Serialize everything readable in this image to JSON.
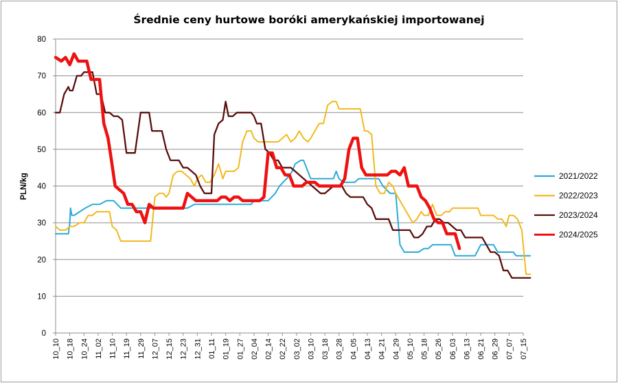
{
  "chart_data": {
    "type": "line",
    "title": "Średnie ceny hurtowe boróki amerykańskiej importowanej",
    "xlabel": "",
    "ylabel": "PLN/kg",
    "ylim": [
      0,
      80
    ],
    "yticks": [
      0,
      10,
      20,
      30,
      40,
      50,
      60,
      70,
      80
    ],
    "grid": true,
    "legend_position": "right",
    "categories": [
      "10_10",
      "10_18",
      "10_24",
      "11_02",
      "11_10",
      "11_19",
      "11_29",
      "12_07",
      "12_15",
      "12_23",
      "12_31",
      "01_11",
      "01_19",
      "01_27",
      "02_04",
      "02_14",
      "02_22",
      "03_02",
      "03_10",
      "03_18",
      "03_28",
      "04_05",
      "04_13",
      "04_21",
      "04_29",
      "05_10",
      "05_18",
      "05_26",
      "06_03",
      "06_13",
      "06_21",
      "06_29",
      "07_07",
      "07_15"
    ],
    "series": [
      {
        "name": "2021/2022",
        "color": "#2aaad6",
        "width": 2,
        "x": [
          0,
          0.9,
          1.0,
          1.05,
          1.15,
          1.3,
          1.7,
          2.1,
          2.6,
          3.1,
          3.6,
          3.8,
          4.1,
          4.6,
          5.0,
          5.4,
          5.8,
          6.3,
          6.8,
          7.3,
          7.8,
          8.3,
          8.8,
          9.3,
          9.8,
          10.0,
          10.3,
          10.8,
          11.3,
          11.8,
          12.3,
          12.8,
          13.3,
          13.8,
          14.0,
          14.3,
          14.8,
          15.0,
          15.5,
          15.8,
          16.3,
          16.7,
          16.9,
          17.3,
          17.5,
          17.8,
          18.0,
          18.3,
          18.7,
          19.0,
          19.3,
          19.6,
          19.8,
          20.0,
          20.3,
          20.5,
          20.8,
          21.1,
          21.4,
          21.8,
          22.0,
          22.4,
          22.8,
          23.1,
          23.6,
          24.0,
          24.3,
          24.6,
          24.9,
          25.2,
          25.6,
          26.0,
          26.3,
          26.6,
          26.9,
          27.3,
          27.6,
          27.9,
          28.2,
          28.5,
          28.8,
          29.2,
          29.6,
          30.0,
          30.3,
          30.6,
          30.9,
          31.2,
          31.6,
          32.0,
          32.3,
          32.5,
          32.8,
          33.2,
          33.5
        ],
        "y": [
          27,
          27,
          30,
          34,
          32,
          32,
          33,
          34,
          35,
          35,
          36,
          36,
          36,
          34,
          34,
          34,
          34,
          34,
          34,
          34,
          34,
          34,
          34,
          34,
          35,
          35,
          35,
          35,
          35,
          35,
          35,
          35,
          35,
          35,
          36,
          36,
          36,
          36,
          38,
          40,
          42,
          44,
          46,
          47,
          47,
          44,
          42,
          42,
          42,
          42,
          42,
          42,
          44,
          42,
          41,
          41,
          41,
          41,
          42,
          42,
          42,
          42,
          42,
          40,
          38,
          38,
          24,
          22,
          22,
          22,
          22,
          23,
          23,
          24,
          24,
          24,
          24,
          24,
          21,
          21,
          21,
          21,
          21,
          24,
          24,
          24,
          24,
          22,
          22,
          22,
          22,
          21,
          21,
          21,
          21
        ]
      },
      {
        "name": "2022/2023",
        "color": "#f2b81c",
        "width": 2,
        "x": [
          0,
          0.3,
          0.7,
          1.0,
          1.3,
          1.7,
          2.0,
          2.3,
          2.6,
          2.9,
          3.2,
          3.5,
          3.8,
          4.0,
          4.3,
          4.6,
          4.9,
          5.2,
          5.5,
          5.8,
          6.1,
          6.4,
          6.7,
          7.0,
          7.3,
          7.6,
          7.8,
          8.0,
          8.3,
          8.6,
          8.9,
          9.2,
          9.5,
          9.8,
          10.0,
          10.3,
          10.6,
          10.9,
          11.2,
          11.5,
          11.8,
          12.0,
          12.3,
          12.6,
          12.9,
          13.2,
          13.5,
          13.8,
          14.0,
          14.3,
          14.6,
          14.9,
          15.1,
          15.4,
          15.7,
          16.0,
          16.3,
          16.6,
          16.9,
          17.2,
          17.5,
          17.8,
          18.0,
          18.3,
          18.6,
          18.9,
          19.2,
          19.5,
          19.8,
          20.0,
          20.3,
          20.6,
          20.9,
          21.2,
          21.5,
          21.8,
          22.0,
          22.3,
          22.6,
          22.9,
          23.2,
          23.5,
          23.8,
          24.0,
          24.3,
          24.6,
          24.9,
          25.2,
          25.5,
          25.8,
          26.0,
          26.3,
          26.6,
          26.9,
          27.2,
          27.5,
          27.8,
          28.0,
          28.3,
          28.6,
          28.9,
          29.2,
          29.5,
          29.8,
          30.0,
          30.3,
          30.6,
          30.9,
          31.2,
          31.5,
          31.8,
          32.0,
          32.3,
          32.6,
          32.9,
          33.2,
          33.5
        ],
        "y": [
          29,
          28,
          28,
          29,
          29,
          30,
          30,
          32,
          32,
          33,
          33,
          33,
          33,
          29,
          28,
          25,
          25,
          25,
          25,
          25,
          25,
          25,
          25,
          37,
          38,
          38,
          37,
          38,
          43,
          44,
          44,
          43,
          42,
          40,
          42,
          43,
          41,
          41,
          43,
          46,
          42,
          44,
          44,
          44,
          45,
          52,
          55,
          55,
          53,
          52,
          52,
          52,
          52,
          52,
          52,
          53,
          54,
          52,
          53,
          55,
          53,
          52,
          53,
          55,
          57,
          57,
          62,
          63,
          63,
          61,
          61,
          61,
          61,
          61,
          61,
          55,
          55,
          54,
          40,
          38,
          38,
          41,
          40,
          38,
          36,
          34,
          32,
          30,
          31,
          33,
          32,
          32,
          35,
          32,
          32,
          33,
          33,
          34,
          34,
          34,
          34,
          34,
          34,
          34,
          32,
          32,
          32,
          32,
          31,
          31,
          29,
          32,
          32,
          31,
          28,
          16,
          16
        ]
      },
      {
        "name": "2023/2024",
        "color": "#5a0c0c",
        "width": 2.3,
        "x": [
          0,
          0.3,
          0.6,
          0.9,
          1.0,
          1.2,
          1.5,
          1.8,
          2.0,
          2.3,
          2.6,
          2.9,
          3.2,
          3.5,
          3.8,
          4.1,
          4.4,
          4.7,
          5.0,
          5.3,
          5.6,
          6.0,
          6.3,
          6.6,
          6.8,
          7.2,
          7.5,
          7.8,
          8.1,
          8.4,
          8.7,
          9.0,
          9.3,
          9.6,
          9.9,
          10.2,
          10.5,
          10.8,
          11.0,
          11.2,
          11.5,
          11.8,
          12.0,
          12.2,
          12.5,
          12.8,
          13.0,
          13.2,
          13.5,
          13.8,
          14.0,
          14.2,
          14.5,
          14.8,
          15.1,
          15.4,
          15.7,
          16.0,
          16.3,
          16.6,
          16.9,
          17.2,
          17.5,
          17.8,
          18.1,
          18.4,
          18.7,
          19.0,
          19.3,
          19.6,
          19.9,
          20.2,
          20.5,
          20.8,
          21.1,
          21.4,
          21.7,
          22.0,
          22.3,
          22.6,
          22.9,
          23.2,
          23.5,
          23.8,
          24.1,
          24.4,
          24.7,
          25.0,
          25.3,
          25.6,
          25.9,
          26.2,
          26.5,
          26.8,
          27.1,
          27.4,
          27.7,
          28.0,
          28.3,
          28.6,
          28.9,
          29.2,
          29.5,
          29.8,
          30.1,
          30.4,
          30.7,
          31.0,
          31.3,
          31.6,
          31.9,
          32.2,
          32.5,
          32.8,
          33.1,
          33.5
        ],
        "y": [
          60,
          60,
          65,
          67,
          66,
          66,
          70,
          70,
          71,
          71,
          71,
          65,
          65,
          60,
          60,
          59,
          59,
          58,
          49,
          49,
          49,
          60,
          60,
          60,
          55,
          55,
          55,
          50,
          47,
          47,
          47,
          45,
          45,
          44,
          43,
          40,
          38,
          38,
          38,
          54,
          57,
          58,
          63,
          59,
          59,
          60,
          60,
          60,
          60,
          60,
          59,
          57,
          57,
          50,
          49,
          47,
          47,
          45,
          45,
          45,
          44,
          43,
          42,
          41,
          40,
          39,
          38,
          38,
          39,
          40,
          40,
          40,
          38,
          37,
          37,
          37,
          37,
          35,
          34,
          31,
          31,
          31,
          31,
          28,
          28,
          28,
          28,
          28,
          26,
          26,
          27,
          29,
          29,
          31,
          31,
          30,
          30,
          29,
          28,
          28,
          26,
          26,
          26,
          26,
          26,
          24,
          22,
          22,
          21,
          17,
          17,
          15,
          15,
          15,
          15,
          15
        ]
      },
      {
        "name": "2024/2025",
        "color": "#ee1111",
        "width": 4.5,
        "x": [
          0,
          0.4,
          0.7,
          1.0,
          1.3,
          1.6,
          1.9,
          2.2,
          2.5,
          2.8,
          3.1,
          3.4,
          3.7,
          3.9,
          4.2,
          4.5,
          4.8,
          5.1,
          5.4,
          5.7,
          6.0,
          6.3,
          6.6,
          6.9,
          7.2,
          7.5,
          7.8,
          8.1,
          8.4,
          8.7,
          9.0,
          9.3,
          9.6,
          9.9,
          10.2,
          10.5,
          10.8,
          11.1,
          11.4,
          11.7,
          12.0,
          12.3,
          12.6,
          12.9,
          13.2,
          13.5,
          13.8,
          14.1,
          14.4,
          14.7,
          15.0,
          15.3,
          15.6,
          15.9,
          16.2,
          16.5,
          16.8,
          17.1,
          17.4,
          17.7,
          18.0,
          18.3,
          18.6,
          18.9,
          19.2,
          19.5,
          19.8,
          20.1,
          20.4,
          20.7,
          21.0,
          21.3,
          21.6,
          21.9,
          22.2,
          22.5,
          22.8,
          23.1,
          23.4,
          23.7,
          24.0,
          24.3,
          24.6,
          24.9,
          25.2,
          25.5,
          25.8,
          26.1,
          26.4,
          26.7,
          27.0,
          27.3,
          27.6,
          27.9,
          28.2,
          28.5
        ],
        "y": [
          75,
          74,
          75,
          73,
          76,
          74,
          74,
          74,
          69,
          69,
          69,
          57,
          53,
          48,
          40,
          39,
          38,
          35,
          35,
          33,
          33,
          30,
          35,
          34,
          34,
          34,
          34,
          34,
          34,
          34,
          34,
          38,
          37,
          36,
          36,
          36,
          36,
          36,
          36,
          37,
          37,
          36,
          37,
          37,
          36,
          36,
          36,
          36,
          36,
          37,
          49,
          49,
          45,
          45,
          43,
          43,
          40,
          40,
          40,
          41,
          41,
          41,
          40,
          40,
          40,
          40,
          40,
          40,
          42,
          50,
          53,
          53,
          45,
          43,
          43,
          43,
          43,
          43,
          43,
          44,
          44,
          43,
          45,
          40,
          40,
          40,
          37,
          36,
          34,
          31,
          30,
          30,
          27,
          27,
          27,
          23
        ]
      }
    ]
  }
}
